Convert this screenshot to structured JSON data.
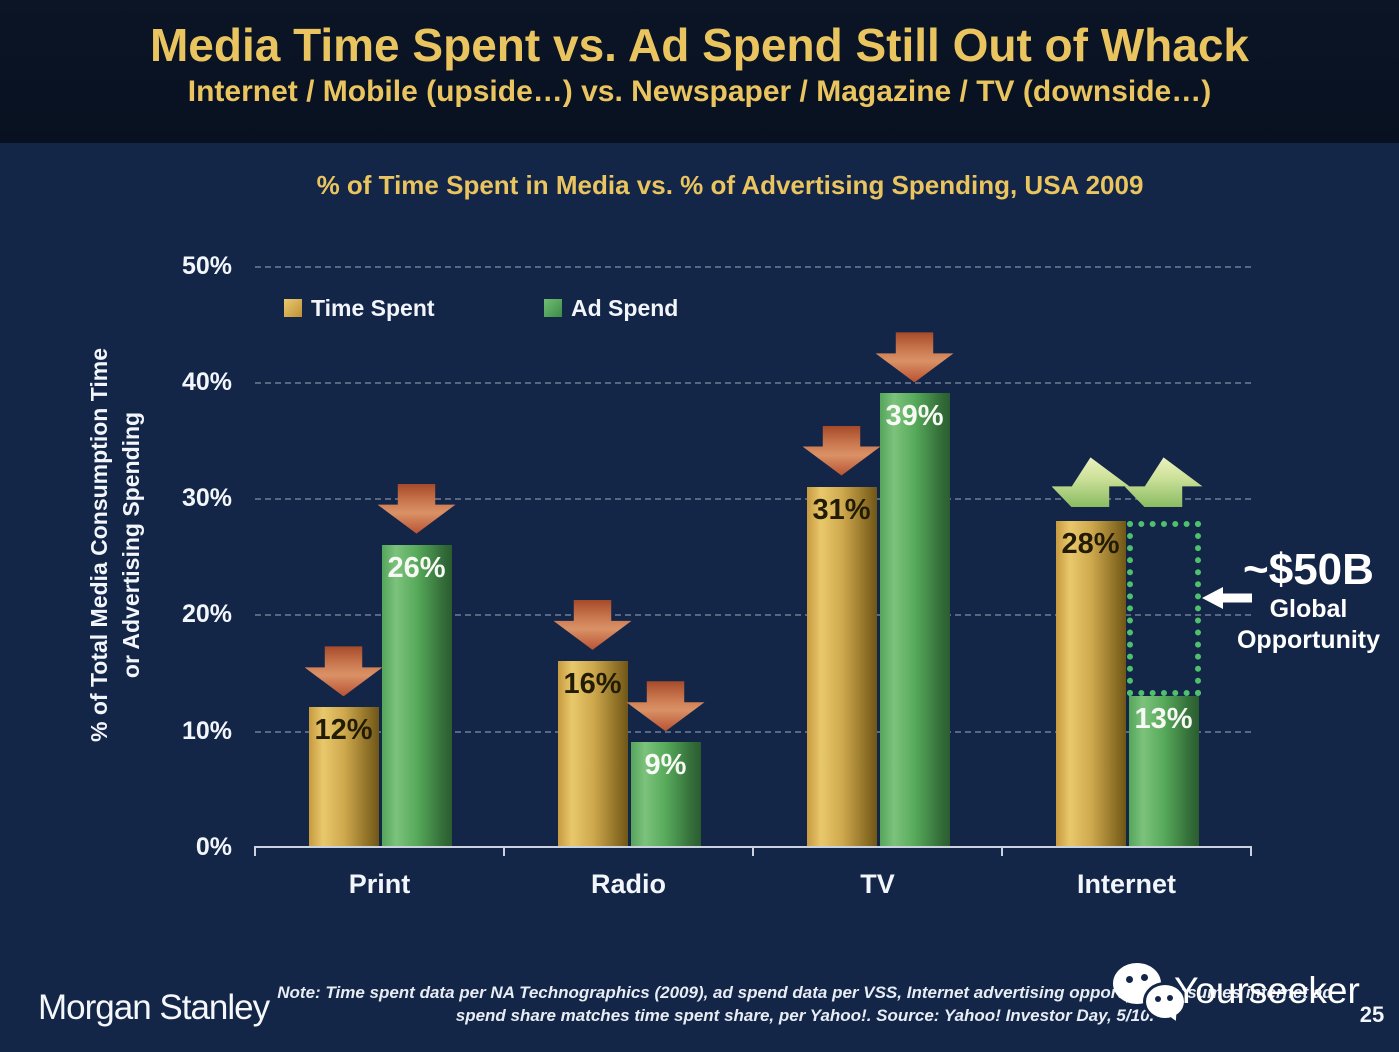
{
  "slide": {
    "title": "Media Time Spent vs. Ad Spend Still Out of Whack",
    "subtitle": "Internet / Mobile (upside…) vs. Newspaper / Magazine / TV (downside…)"
  },
  "chart_data": {
    "type": "bar",
    "title": "% of Time Spent in Media vs. % of Advertising Spending, USA 2009",
    "ylabel_line1": "% of Total Media Consumption Time",
    "ylabel_line2": "or Advertising Spending",
    "categories": [
      "Print",
      "Radio",
      "TV",
      "Internet"
    ],
    "series": [
      {
        "name": "Time Spent",
        "color": "gold",
        "values": [
          12,
          16,
          31,
          28
        ],
        "labels": [
          "12%",
          "16%",
          "31%",
          "28%"
        ]
      },
      {
        "name": "Ad Spend",
        "color": "green",
        "values": [
          26,
          9,
          39,
          13
        ],
        "labels": [
          "26%",
          "9%",
          "39%",
          "13%"
        ]
      }
    ],
    "trend_arrows": [
      [
        "down",
        "down"
      ],
      [
        "down",
        "down"
      ],
      [
        "down",
        "down"
      ],
      [
        "up",
        "up"
      ]
    ],
    "yticks": [
      "0%",
      "10%",
      "20%",
      "30%",
      "40%",
      "50%"
    ],
    "ylim": [
      0,
      50
    ],
    "grid": "dashed-horizontal",
    "legend_position": "top-left-inside",
    "annotation": {
      "headline": "~$50B",
      "line1": "Global",
      "line2": "Opportunity",
      "target_category": "Internet"
    }
  },
  "footer": {
    "brand": "Morgan Stanley",
    "note_line1": "Note: Time spent data per NA Technographics (2009), ad spend data per VSS, Internet advertising opportunity assumes internet ad",
    "note_line2": "spend share matches time spent share, per Yahoo!. Source: Yahoo! Investor Day, 5/10.",
    "watermark": "Yourseeker",
    "page": "25"
  },
  "colors": {
    "background": "#132648",
    "header_background": "#081120",
    "title_gold": "#e9c45f",
    "bar_gold": "#d4a843",
    "bar_green": "#55a656",
    "arrow_down_red": "#c97a50",
    "arrow_up_green": "#cee29b",
    "opportunity_box_green": "#4fc06c",
    "axis_line": "#c9d2de"
  }
}
